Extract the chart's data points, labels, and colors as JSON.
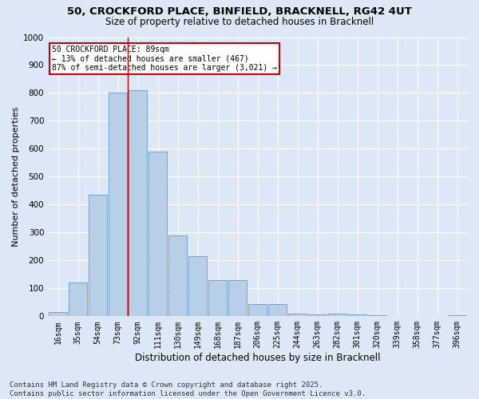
{
  "title1": "50, CROCKFORD PLACE, BINFIELD, BRACKNELL, RG42 4UT",
  "title2": "Size of property relative to detached houses in Bracknell",
  "xlabel": "Distribution of detached houses by size in Bracknell",
  "ylabel": "Number of detached properties",
  "categories": [
    "16sqm",
    "35sqm",
    "54sqm",
    "73sqm",
    "92sqm",
    "111sqm",
    "130sqm",
    "149sqm",
    "168sqm",
    "187sqm",
    "206sqm",
    "225sqm",
    "244sqm",
    "263sqm",
    "282sqm",
    "301sqm",
    "320sqm",
    "339sqm",
    "358sqm",
    "377sqm",
    "396sqm"
  ],
  "values": [
    15,
    120,
    435,
    800,
    810,
    590,
    290,
    215,
    130,
    130,
    45,
    45,
    10,
    7,
    10,
    7,
    3,
    2,
    2,
    2,
    5
  ],
  "bar_color": "#b8cfe8",
  "bar_edge_color": "#6699cc",
  "vline_color": "#cc0000",
  "annotation_box_text": "50 CROCKFORD PLACE: 89sqm\n← 13% of detached houses are smaller (467)\n87% of semi-detached houses are larger (3,021) →",
  "annotation_box_color": "#cc0000",
  "annotation_box_bg": "#ffffff",
  "ylim": [
    0,
    1000
  ],
  "yticks": [
    0,
    100,
    200,
    300,
    400,
    500,
    600,
    700,
    800,
    900,
    1000
  ],
  "footnote": "Contains HM Land Registry data © Crown copyright and database right 2025.\nContains public sector information licensed under the Open Government Licence v3.0.",
  "bg_color": "#dce8f5",
  "plot_bg_color": "#dce8f5",
  "grid_color": "#ffffff",
  "title_fontsize": 9.5,
  "subtitle_fontsize": 8.5,
  "axis_label_fontsize": 8,
  "tick_fontsize": 7,
  "footnote_fontsize": 6.5,
  "vline_bar_index": 4
}
